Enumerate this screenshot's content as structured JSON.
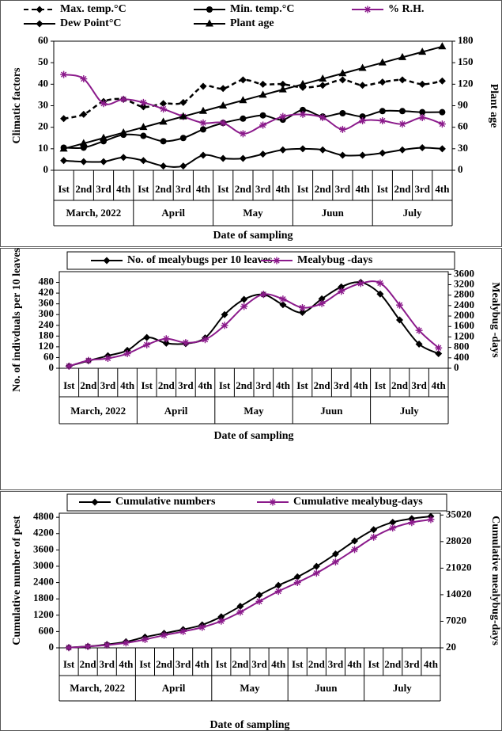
{
  "chart_data": [
    {
      "type": "line",
      "y_label": "Climatic factors",
      "y2_label": "Plant age",
      "x_label": "Date of sampling",
      "categories": [
        "Ist",
        "2nd",
        "3rd",
        "4th",
        "Ist",
        "2nd",
        "3rd",
        "4th",
        "Ist",
        "2nd",
        "3rd",
        "4th",
        "Ist",
        "2nd",
        "3rd",
        "4th",
        "Ist",
        "2nd",
        "3rd",
        "4th"
      ],
      "x_groups": [
        "March, 2022",
        "April",
        "May",
        "Juun",
        "July"
      ],
      "ylim": [
        0,
        60
      ],
      "yticks": [
        0,
        10,
        20,
        30,
        40,
        50,
        60
      ],
      "y2lim": [
        0,
        180
      ],
      "y2ticks": [
        0,
        30,
        60,
        90,
        120,
        150,
        180
      ],
      "legend": "top",
      "series": [
        {
          "name": "Max. temp.°C",
          "color": "#000000",
          "marker": "diamond",
          "dashed": true,
          "values": [
            24,
            26,
            32,
            33,
            29.5,
            31,
            31.5,
            39,
            38,
            42,
            40,
            40,
            38.5,
            39.5,
            42,
            39.5,
            41,
            42,
            40,
            41.5
          ]
        },
        {
          "name": "Min. temp.°C",
          "color": "#000000",
          "marker": "circle",
          "values": [
            10.5,
            10.5,
            13.5,
            16.5,
            16,
            13.5,
            15,
            19,
            22,
            24,
            25.5,
            23.5,
            28,
            25,
            26.5,
            25,
            27.5,
            27.5,
            27,
            27
          ]
        },
        {
          "name": "% R.H.",
          "color": "#8b1a8b",
          "marker": "asterisk",
          "values": [
            44.5,
            42.5,
            31,
            33,
            31.5,
            28.5,
            25,
            22,
            22,
            17,
            21,
            25,
            26,
            24.5,
            19,
            23,
            23,
            21.5,
            24.5,
            21.5
          ]
        },
        {
          "name": "Dew Point°C",
          "color": "#000000",
          "marker": "diamond",
          "values": [
            4.5,
            4,
            4,
            6,
            4.5,
            2,
            2,
            7,
            5.5,
            5.5,
            7.5,
            9.5,
            10,
            9.5,
            7,
            7,
            8,
            9.5,
            10.5,
            10
          ]
        },
        {
          "name": "Plant age",
          "color": "#000000",
          "marker": "triangle",
          "axis": "y2",
          "values": [
            30,
            37.5,
            45,
            52.5,
            60,
            67.5,
            75,
            82.5,
            90,
            97.5,
            105,
            112.5,
            120,
            127.5,
            135,
            142.5,
            150,
            157.5,
            165,
            172.5
          ]
        }
      ]
    },
    {
      "type": "line",
      "y_label": "No. of indivduals per 10 leaves",
      "y2_label": "Mealybug -days",
      "x_label": "Date of sampling",
      "categories": [
        "Ist",
        "2nd",
        "3rd",
        "4th",
        "Ist",
        "2nd",
        "3rd",
        "4th",
        "Ist",
        "2nd",
        "3rd",
        "4th",
        "Ist",
        "2nd",
        "3rd",
        "4th",
        "Ist",
        "2nd",
        "3rd",
        "4th"
      ],
      "x_groups": [
        "March, 2022",
        "April",
        "May",
        "Juun",
        "July"
      ],
      "ylim": [
        0,
        540
      ],
      "yticks": [
        0,
        60,
        120,
        180,
        240,
        300,
        360,
        420,
        480
      ],
      "y2lim": [
        0,
        3700
      ],
      "y2ticks": [
        0,
        400,
        800,
        1200,
        1600,
        2000,
        2400,
        2800,
        3200,
        3600
      ],
      "legend": "top",
      "series": [
        {
          "name": "No. of mealybugs per 10 leaves",
          "color": "#000000",
          "marker": "diamond",
          "values": [
            12,
            42,
            70,
            100,
            172,
            140,
            138,
            170,
            300,
            385,
            412,
            355,
            312,
            388,
            455,
            480,
            415,
            270,
            135,
            82
          ]
        },
        {
          "name": "Mealybug -days",
          "color": "#8b1a8b",
          "marker": "asterisk",
          "axis": "y2",
          "values": [
            80,
            300,
            380,
            560,
            900,
            1130,
            980,
            1100,
            1640,
            2370,
            2830,
            2650,
            2320,
            2480,
            2950,
            3250,
            3260,
            2420,
            1450,
            780
          ]
        }
      ]
    },
    {
      "type": "line",
      "y_label": "Cumulative number of pest",
      "y2_label": "Cumulative mealybug-days",
      "x_label": "Date of sampling",
      "categories": [
        "Ist",
        "2nd",
        "3rd",
        "4th",
        "Ist",
        "2nd",
        "3rd",
        "4th",
        "Ist",
        "2nd",
        "3rd",
        "4th",
        "Ist",
        "2nd",
        "3rd",
        "4th",
        "Ist",
        "2nd",
        "3rd",
        "4th"
      ],
      "x_groups": [
        "March, 2022",
        "April",
        "May",
        "Juun",
        "July"
      ],
      "ylim": [
        0,
        4950
      ],
      "yticks": [
        0,
        600,
        1200,
        1800,
        2400,
        3000,
        3600,
        4200,
        4800
      ],
      "y2lim": [
        20,
        35500
      ],
      "y2ticks": [
        20,
        7020,
        14020,
        21020,
        28020,
        35020
      ],
      "legend": "top",
      "series": [
        {
          "name": "Cumulative numbers",
          "color": "#000000",
          "marker": "diamond",
          "values": [
            12,
            54,
            124,
            224,
            396,
            536,
            674,
            844,
            1144,
            1529,
            1941,
            2296,
            2608,
            2996,
            3451,
            3931,
            4346,
            4616,
            4751,
            4833
          ]
        },
        {
          "name": "Cumulative mealybug-days",
          "color": "#8b1a8b",
          "marker": "asterisk",
          "axis": "y2",
          "values": [
            80,
            380,
            760,
            1320,
            2220,
            3350,
            4330,
            5430,
            7070,
            9440,
            12270,
            14920,
            17240,
            19720,
            22670,
            25920,
            29180,
            31600,
            33050,
            33830
          ]
        }
      ]
    }
  ]
}
